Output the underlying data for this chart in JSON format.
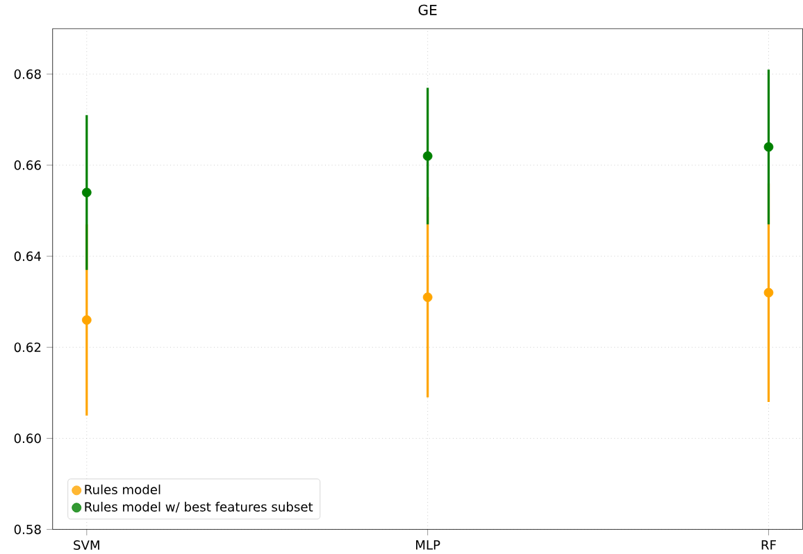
{
  "chart_data": {
    "type": "scatter",
    "title": "GE",
    "categories": [
      "SVM",
      "MLP",
      "RF"
    ],
    "series": [
      {
        "name": "Rules model",
        "color": "#ffa500",
        "values": [
          0.626,
          0.631,
          0.632
        ],
        "errors": [
          0.021,
          0.022,
          0.024
        ]
      },
      {
        "name": "Rules model w/ best features subset",
        "color": "#008000",
        "values": [
          0.654,
          0.662,
          0.664
        ],
        "errors": [
          0.017,
          0.015,
          0.017
        ]
      }
    ],
    "ylim": [
      0.58,
      0.69
    ],
    "yticks": [
      {
        "value": 0.58,
        "label": "0.58"
      },
      {
        "value": 0.6,
        "label": "0.60"
      },
      {
        "value": 0.62,
        "label": "0.62"
      },
      {
        "value": 0.64,
        "label": "0.64"
      },
      {
        "value": 0.66,
        "label": "0.66"
      },
      {
        "value": 0.68,
        "label": "0.68"
      }
    ],
    "grid": true,
    "legend": "bottom left"
  }
}
